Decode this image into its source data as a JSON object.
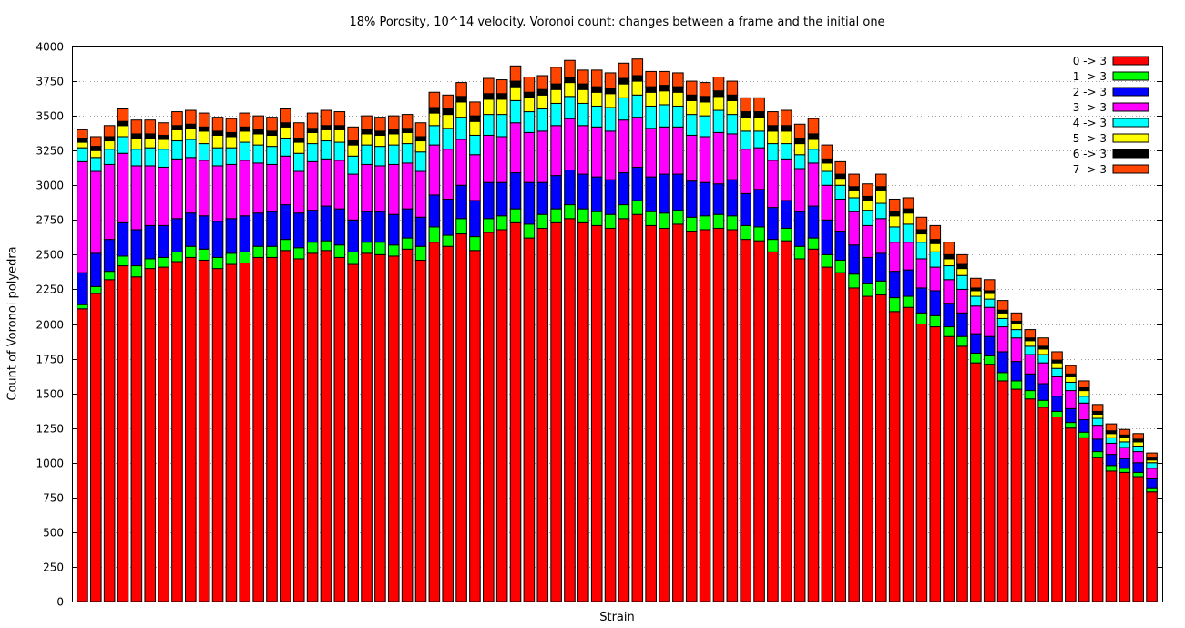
{
  "chart_data": {
    "type": "bar",
    "stacked": true,
    "title": "18% Porosity, 10^14 velocity. Voronoi count: changes between a frame and the initial one",
    "xlabel": "Strain",
    "ylabel": "Count of Voronoi polyedra",
    "ylim": [
      0,
      4000
    ],
    "yticks": [
      0,
      250,
      500,
      750,
      1000,
      1250,
      1500,
      1750,
      2000,
      2250,
      2500,
      2750,
      3000,
      3250,
      3500,
      3750,
      4000
    ],
    "ytick_labels": [
      "0",
      "250",
      "500",
      "750",
      "1000",
      "1250",
      "1500",
      "1750",
      "2000",
      "2250",
      "2500",
      "2750",
      "3000",
      "3250",
      "3500",
      "3750",
      "4000"
    ],
    "grid": "horizontal dotted",
    "legend_position": "top-right",
    "series": [
      {
        "name": "0 -> 3",
        "color": "#ff0000",
        "values": [
          2110,
          2220,
          2320,
          2420,
          2340,
          2400,
          2410,
          2450,
          2480,
          2460,
          2400,
          2430,
          2440,
          2480,
          2480,
          2530,
          2470,
          2510,
          2530,
          2480,
          2430,
          2510,
          2500,
          2490,
          2540,
          2460,
          2590,
          2560,
          2650,
          2530,
          2660,
          2680,
          2730,
          2620,
          2690,
          2730,
          2760,
          2730,
          2710,
          2690,
          2760,
          2790,
          2710,
          2690,
          2720,
          2670,
          2680,
          2690,
          2680,
          2610,
          2600,
          2520,
          2600,
          2470,
          2540,
          2410,
          2370,
          2260,
          2200,
          2210,
          2090,
          2120,
          2000,
          1980,
          1910,
          1840,
          1720,
          1710,
          1590,
          1530,
          1460,
          1400,
          1330,
          1250,
          1180,
          1040,
          940,
          930,
          900,
          790
        ]
      },
      {
        "name": "1 -> 3",
        "color": "#00ff00",
        "values": [
          30,
          50,
          60,
          70,
          80,
          70,
          70,
          70,
          80,
          80,
          80,
          80,
          80,
          80,
          80,
          80,
          80,
          80,
          70,
          90,
          90,
          80,
          90,
          80,
          80,
          100,
          110,
          80,
          110,
          100,
          100,
          100,
          100,
          100,
          100,
          100,
          100,
          100,
          100,
          100,
          100,
          100,
          100,
          110,
          100,
          100,
          100,
          100,
          100,
          100,
          100,
          90,
          90,
          90,
          80,
          90,
          90,
          100,
          90,
          100,
          100,
          80,
          80,
          80,
          70,
          70,
          70,
          60,
          60,
          60,
          60,
          50,
          40,
          40,
          40,
          40,
          40,
          30,
          30,
          30
        ]
      },
      {
        "name": "2 -> 3",
        "color": "#0000ff",
        "values": [
          230,
          240,
          230,
          240,
          260,
          240,
          230,
          240,
          240,
          240,
          260,
          250,
          260,
          240,
          250,
          250,
          250,
          230,
          250,
          260,
          230,
          220,
          220,
          220,
          210,
          210,
          230,
          260,
          240,
          260,
          260,
          240,
          260,
          300,
          230,
          240,
          250,
          250,
          250,
          250,
          230,
          240,
          250,
          280,
          260,
          260,
          240,
          220,
          260,
          230,
          270,
          230,
          200,
          250,
          230,
          250,
          210,
          210,
          190,
          200,
          190,
          190,
          180,
          180,
          170,
          170,
          140,
          140,
          150,
          140,
          120,
          120,
          110,
          100,
          90,
          90,
          80,
          70,
          70,
          70
        ]
      },
      {
        "name": "3 -> 3",
        "color": "#ff00ff",
        "values": [
          800,
          590,
          540,
          500,
          460,
          430,
          420,
          430,
          400,
          400,
          400,
          390,
          400,
          360,
          340,
          350,
          300,
          350,
          340,
          350,
          330,
          340,
          330,
          360,
          330,
          330,
          360,
          360,
          330,
          330,
          340,
          330,
          360,
          360,
          370,
          360,
          370,
          350,
          360,
          350,
          380,
          360,
          350,
          340,
          340,
          330,
          330,
          370,
          330,
          320,
          300,
          340,
          300,
          310,
          310,
          250,
          230,
          240,
          230,
          250,
          210,
          200,
          210,
          170,
          170,
          170,
          200,
          210,
          180,
          170,
          140,
          150,
          140,
          130,
          120,
          100,
          80,
          80,
          80,
          70
        ]
      },
      {
        "name": "4 -> 3",
        "color": "#00ffff",
        "values": [
          100,
          100,
          110,
          120,
          120,
          130,
          130,
          130,
          130,
          120,
          130,
          120,
          130,
          130,
          130,
          130,
          130,
          130,
          130,
          130,
          130,
          140,
          140,
          140,
          140,
          140,
          140,
          150,
          160,
          140,
          150,
          160,
          160,
          150,
          160,
          160,
          160,
          160,
          150,
          170,
          160,
          160,
          160,
          160,
          150,
          150,
          150,
          160,
          140,
          130,
          120,
          120,
          110,
          100,
          100,
          100,
          100,
          100,
          110,
          110,
          110,
          130,
          120,
          110,
          100,
          100,
          70,
          60,
          60,
          60,
          60,
          60,
          60,
          60,
          50,
          50,
          40,
          40,
          40,
          40
        ]
      },
      {
        "name": "5 -> 3",
        "color": "#ffff00",
        "values": [
          40,
          50,
          60,
          80,
          80,
          70,
          70,
          80,
          80,
          90,
          90,
          80,
          80,
          80,
          80,
          80,
          80,
          80,
          80,
          90,
          80,
          80,
          80,
          80,
          80,
          80,
          90,
          100,
          110,
          100,
          110,
          110,
          100,
          100,
          100,
          100,
          100,
          100,
          100,
          100,
          100,
          100,
          100,
          100,
          100,
          100,
          100,
          100,
          100,
          100,
          100,
          90,
          90,
          80,
          70,
          60,
          50,
          50,
          70,
          90,
          80,
          80,
          60,
          60,
          50,
          50,
          40,
          40,
          40,
          40,
          40,
          40,
          40,
          40,
          40,
          30,
          30,
          30,
          30,
          20
        ]
      },
      {
        "name": "6 -> 3",
        "color": "#000000",
        "values": [
          30,
          30,
          30,
          30,
          30,
          30,
          30,
          30,
          30,
          30,
          30,
          30,
          30,
          30,
          30,
          30,
          30,
          30,
          30,
          30,
          30,
          30,
          30,
          30,
          30,
          30,
          40,
          40,
          40,
          40,
          40,
          40,
          40,
          40,
          40,
          40,
          40,
          40,
          40,
          40,
          40,
          40,
          40,
          40,
          40,
          40,
          40,
          40,
          40,
          40,
          40,
          40,
          40,
          40,
          40,
          30,
          30,
          30,
          30,
          30,
          30,
          30,
          30,
          30,
          30,
          30,
          20,
          20,
          20,
          20,
          20,
          20,
          20,
          20,
          20,
          20,
          20,
          20,
          20,
          20
        ]
      },
      {
        "name": "7 -> 3",
        "color": "#ff4500",
        "values": [
          60,
          70,
          80,
          90,
          100,
          100,
          90,
          100,
          100,
          100,
          100,
          100,
          100,
          100,
          100,
          100,
          110,
          110,
          110,
          100,
          100,
          100,
          100,
          100,
          100,
          100,
          110,
          100,
          100,
          100,
          110,
          100,
          110,
          110,
          100,
          120,
          120,
          100,
          120,
          110,
          110,
          120,
          110,
          100,
          100,
          100,
          100,
          100,
          100,
          100,
          100,
          100,
          110,
          100,
          110,
          100,
          90,
          90,
          90,
          90,
          90,
          80,
          90,
          100,
          90,
          70,
          70,
          80,
          70,
          60,
          60,
          60,
          60,
          60,
          50,
          50,
          50,
          40,
          40,
          30
        ]
      }
    ]
  }
}
